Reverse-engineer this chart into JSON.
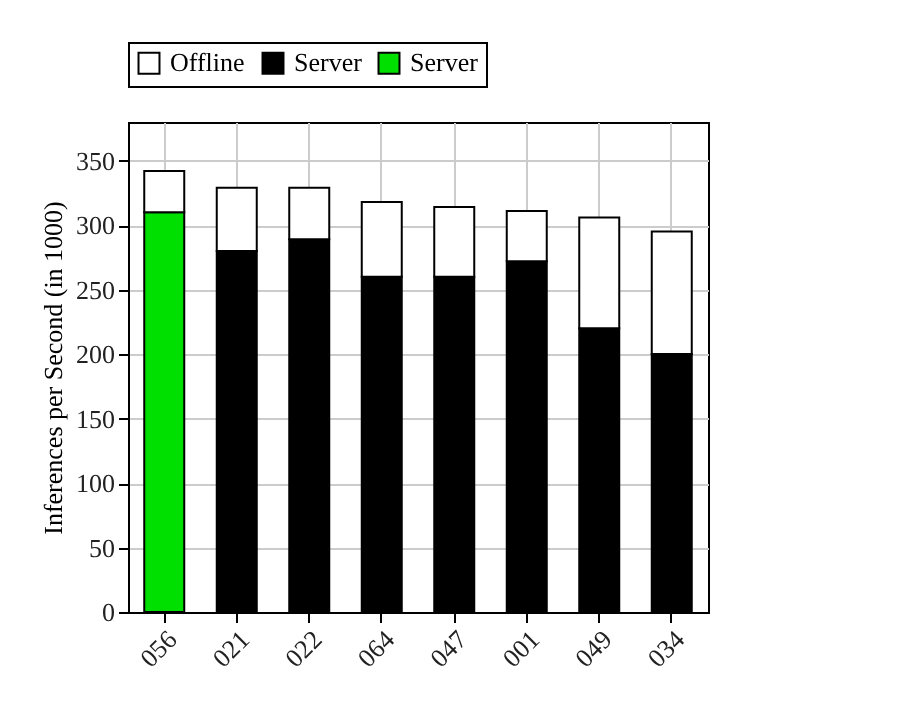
{
  "chart_data": {
    "type": "bar",
    "stacked": true,
    "ylabel": "Inferences per Second (in 1000)",
    "categories": [
      "056",
      "021",
      "022",
      "064",
      "047",
      "001",
      "049",
      "034"
    ],
    "series": [
      {
        "name": "Server",
        "color": "#00e000",
        "values": [
          310,
          null,
          null,
          null,
          null,
          null,
          null,
          null
        ]
      },
      {
        "name": "Server",
        "color": "#000000",
        "values": [
          null,
          280,
          289,
          260,
          260,
          272,
          220,
          200
        ]
      },
      {
        "name": "Offline",
        "color": "#ffffff",
        "values": [
          32,
          49,
          40,
          58,
          54,
          39,
          86,
          95
        ]
      }
    ],
    "ylim": [
      0,
      380
    ],
    "yticks": [
      0,
      50,
      100,
      150,
      200,
      250,
      300,
      350
    ],
    "grid": true,
    "legend": "top"
  }
}
